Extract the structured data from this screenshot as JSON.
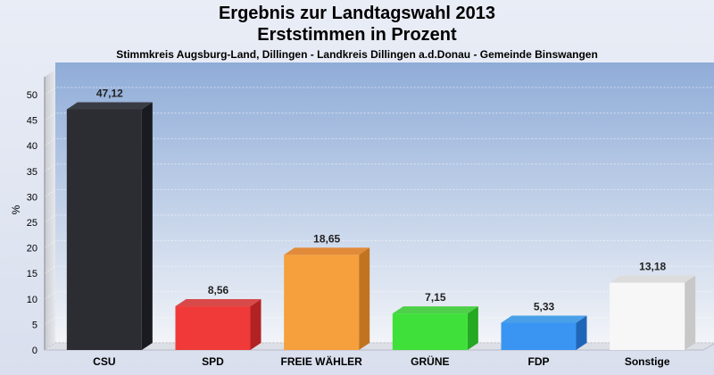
{
  "chart_data": {
    "type": "bar",
    "title": "Ergebnis zur Landtagswahl 2013",
    "subtitle": "Erststimmen in Prozent",
    "caption": "Stimmkreis Augsburg-Land, Dillingen - Landkreis Dillingen a.d.Donau - Gemeinde Binswangen",
    "ylabel": "%",
    "xlabel": "",
    "ylim": [
      0,
      50
    ],
    "yticks": [
      0,
      5,
      10,
      15,
      20,
      25,
      30,
      35,
      40,
      45,
      50
    ],
    "grid": true,
    "categories": [
      "CSU",
      "SPD",
      "FREIE WÄHLER",
      "GRÜNE",
      "FDP",
      "Sonstige"
    ],
    "values": [
      47.12,
      8.56,
      18.65,
      7.15,
      5.33,
      13.18
    ],
    "value_labels": [
      "47,12",
      "8,56",
      "18,65",
      "7,15",
      "5,33",
      "13,18"
    ],
    "colors": [
      "#2b2d33",
      "#f03a3a",
      "#f5a03c",
      "#3fe03a",
      "#3a94f2",
      "#f7f7f7"
    ],
    "side_colors": [
      "#1a1b20",
      "#b32222",
      "#c27320",
      "#25a822",
      "#2066b8",
      "#c8c8c8"
    ],
    "top_colors": [
      "#3a3c44",
      "#d84a4a",
      "#e08a3a",
      "#4ed04a",
      "#4aa0e8",
      "#dcdcdc"
    ]
  }
}
